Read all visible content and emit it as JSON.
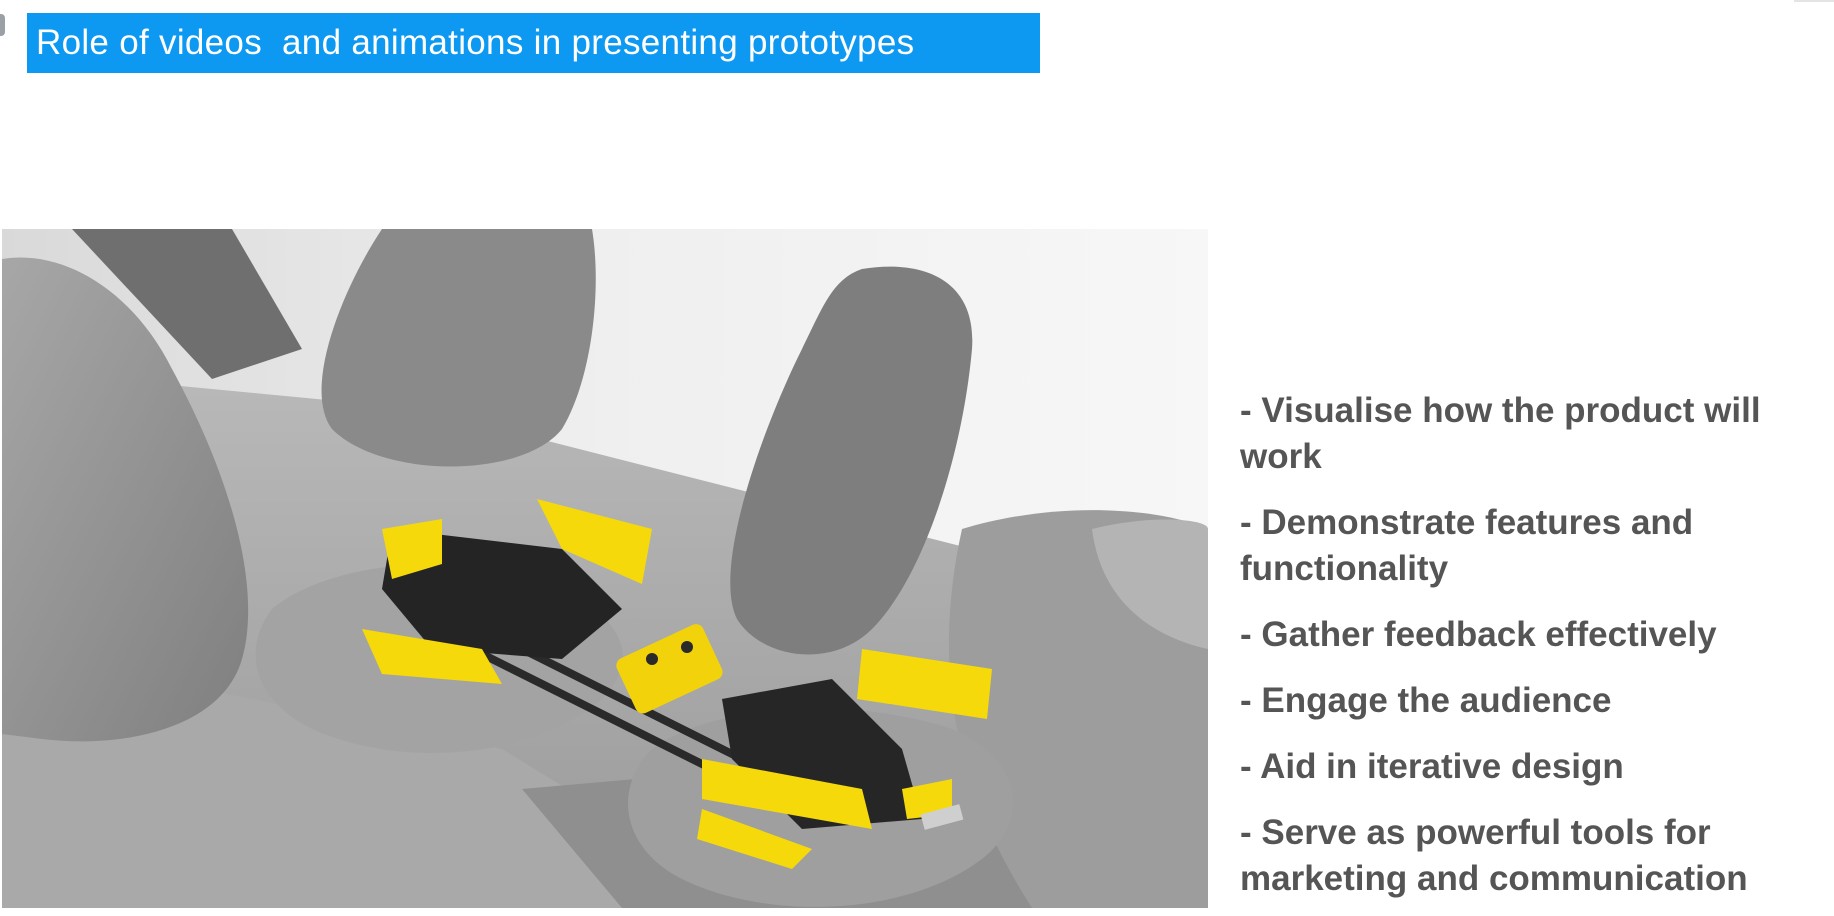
{
  "slide": {
    "title": "Role of videos  and animations in presenting prototypes",
    "image": {
      "description_icon": "car-interior-render-icon"
    },
    "bullets": [
      "- Visualise how the product will work",
      "- Demonstrate features and functionality",
      "- Gather feedback effectively",
      "- Engage the audience",
      "- Aid in iterative design",
      "- Serve as powerful tools for marketing and communication"
    ]
  },
  "colors": {
    "title_bg": "#0d99f2",
    "title_text": "#ffffff",
    "bullet_text": "#555555",
    "accent_yellow": "#f5d90a"
  }
}
